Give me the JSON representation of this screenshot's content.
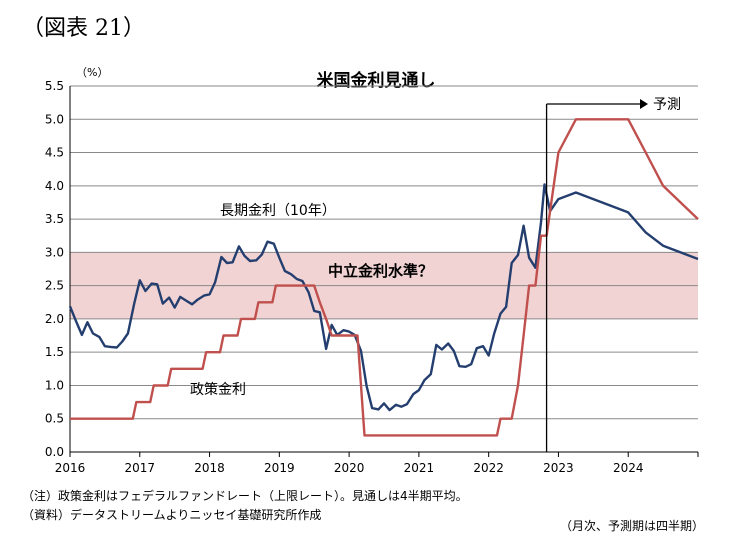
{
  "figure_label": "（図表 21）",
  "chart_data": {
    "type": "line",
    "title": "米国金利見通し",
    "yunit": "（%）",
    "ylim": [
      0,
      5.5
    ],
    "yticks": [
      "0.0",
      "0.5",
      "1.0",
      "1.5",
      "2.0",
      "2.5",
      "3.0",
      "3.5",
      "4.0",
      "4.5",
      "5.0",
      "5.5"
    ],
    "xlim": [
      2016,
      2025
    ],
    "xticks": [
      "2016",
      "2017",
      "2018",
      "2019",
      "2020",
      "2021",
      "2022",
      "2023",
      "2024"
    ],
    "neutral_band": {
      "label": "中立金利水準？",
      "range": [
        2.0,
        3.0
      ],
      "color": "#f2d3d3"
    },
    "forecast": {
      "start": 2022.83,
      "label": "予測"
    },
    "series": [
      {
        "name": "長期金利（10年）",
        "color": "#243f6f",
        "points": [
          [
            2016.0,
            2.19
          ],
          [
            2016.08,
            1.98
          ],
          [
            2016.17,
            1.76
          ],
          [
            2016.25,
            1.95
          ],
          [
            2016.33,
            1.78
          ],
          [
            2016.42,
            1.73
          ],
          [
            2016.5,
            1.59
          ],
          [
            2016.58,
            1.58
          ],
          [
            2016.67,
            1.57
          ],
          [
            2016.75,
            1.66
          ],
          [
            2016.83,
            1.78
          ],
          [
            2016.92,
            2.23
          ],
          [
            2017.0,
            2.58
          ],
          [
            2017.08,
            2.42
          ],
          [
            2017.17,
            2.53
          ],
          [
            2017.25,
            2.52
          ],
          [
            2017.33,
            2.23
          ],
          [
            2017.42,
            2.32
          ],
          [
            2017.5,
            2.17
          ],
          [
            2017.58,
            2.33
          ],
          [
            2017.67,
            2.27
          ],
          [
            2017.75,
            2.22
          ],
          [
            2017.83,
            2.29
          ],
          [
            2017.92,
            2.35
          ],
          [
            2018.0,
            2.37
          ],
          [
            2018.08,
            2.55
          ],
          [
            2018.17,
            2.93
          ],
          [
            2018.25,
            2.84
          ],
          [
            2018.33,
            2.85
          ],
          [
            2018.42,
            3.09
          ],
          [
            2018.5,
            2.95
          ],
          [
            2018.58,
            2.87
          ],
          [
            2018.67,
            2.88
          ],
          [
            2018.75,
            2.97
          ],
          [
            2018.83,
            3.16
          ],
          [
            2018.92,
            3.13
          ],
          [
            2019.0,
            2.92
          ],
          [
            2019.08,
            2.72
          ],
          [
            2019.17,
            2.67
          ],
          [
            2019.25,
            2.6
          ],
          [
            2019.33,
            2.57
          ],
          [
            2019.42,
            2.4
          ],
          [
            2019.5,
            2.12
          ],
          [
            2019.58,
            2.1
          ],
          [
            2019.67,
            1.55
          ],
          [
            2019.75,
            1.91
          ],
          [
            2019.83,
            1.76
          ],
          [
            2019.92,
            1.83
          ],
          [
            2020.0,
            1.81
          ],
          [
            2020.08,
            1.76
          ],
          [
            2020.17,
            1.52
          ],
          [
            2020.25,
            0.99
          ],
          [
            2020.33,
            0.66
          ],
          [
            2020.42,
            0.64
          ],
          [
            2020.5,
            0.73
          ],
          [
            2020.58,
            0.63
          ],
          [
            2020.67,
            0.71
          ],
          [
            2020.75,
            0.68
          ],
          [
            2020.83,
            0.72
          ],
          [
            2020.92,
            0.87
          ],
          [
            2021.0,
            0.93
          ],
          [
            2021.08,
            1.08
          ],
          [
            2021.17,
            1.17
          ],
          [
            2021.25,
            1.61
          ],
          [
            2021.33,
            1.54
          ],
          [
            2021.42,
            1.63
          ],
          [
            2021.5,
            1.52
          ],
          [
            2021.58,
            1.29
          ],
          [
            2021.67,
            1.28
          ],
          [
            2021.75,
            1.32
          ],
          [
            2021.83,
            1.56
          ],
          [
            2021.92,
            1.59
          ],
          [
            2022.0,
            1.45
          ],
          [
            2022.08,
            1.78
          ],
          [
            2022.17,
            2.08
          ],
          [
            2022.25,
            2.18
          ],
          [
            2022.33,
            2.84
          ],
          [
            2022.42,
            2.96
          ],
          [
            2022.5,
            3.4
          ],
          [
            2022.58,
            2.92
          ],
          [
            2022.67,
            2.77
          ],
          [
            2022.75,
            3.45
          ],
          [
            2022.8,
            4.02
          ],
          [
            2022.88,
            3.62
          ],
          [
            2023.0,
            3.8
          ],
          [
            2023.25,
            3.9
          ],
          [
            2023.5,
            3.8
          ],
          [
            2023.75,
            3.7
          ],
          [
            2024.0,
            3.6
          ],
          [
            2024.25,
            3.3
          ],
          [
            2024.5,
            3.1
          ],
          [
            2024.75,
            3.0
          ],
          [
            2025.0,
            2.9
          ]
        ]
      },
      {
        "name": "政策金利",
        "color": "#c0504d",
        "points": [
          [
            2016.0,
            0.5
          ],
          [
            2016.9,
            0.5
          ],
          [
            2016.95,
            0.75
          ],
          [
            2017.15,
            0.75
          ],
          [
            2017.2,
            1.0
          ],
          [
            2017.4,
            1.0
          ],
          [
            2017.45,
            1.25
          ],
          [
            2017.9,
            1.25
          ],
          [
            2017.95,
            1.5
          ],
          [
            2018.15,
            1.5
          ],
          [
            2018.2,
            1.75
          ],
          [
            2018.4,
            1.75
          ],
          [
            2018.45,
            2.0
          ],
          [
            2018.65,
            2.0
          ],
          [
            2018.7,
            2.25
          ],
          [
            2018.9,
            2.25
          ],
          [
            2018.95,
            2.5
          ],
          [
            2019.5,
            2.5
          ],
          [
            2019.58,
            2.25
          ],
          [
            2019.67,
            2.0
          ],
          [
            2019.75,
            1.75
          ],
          [
            2020.12,
            1.75
          ],
          [
            2020.17,
            1.0
          ],
          [
            2020.22,
            0.25
          ],
          [
            2022.12,
            0.25
          ],
          [
            2022.17,
            0.5
          ],
          [
            2022.33,
            0.5
          ],
          [
            2022.42,
            1.0
          ],
          [
            2022.5,
            1.75
          ],
          [
            2022.58,
            2.5
          ],
          [
            2022.67,
            2.5
          ],
          [
            2022.75,
            3.25
          ],
          [
            2022.83,
            3.25
          ],
          [
            2023.0,
            4.5
          ],
          [
            2023.25,
            5.0
          ],
          [
            2023.5,
            5.0
          ],
          [
            2023.75,
            5.0
          ],
          [
            2024.0,
            5.0
          ],
          [
            2024.25,
            4.5
          ],
          [
            2024.5,
            4.0
          ],
          [
            2024.75,
            3.75
          ],
          [
            2025.0,
            3.5
          ]
        ]
      }
    ],
    "annotations": {
      "long_rate_label": "長期金利（10年）",
      "policy_rate_label": "政策金利"
    }
  },
  "notes": [
    "（注）政策金利はフェデラルファンドレート（上限レート）。見通しは4半期平均。",
    "（資料）データストリームよりニッセイ基礎研究所作成"
  ],
  "frequency_note": "（月次、予測期は四半期）"
}
